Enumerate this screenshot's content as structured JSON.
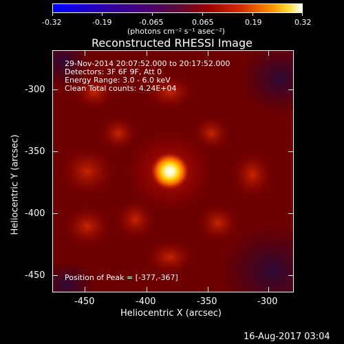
{
  "colorbar": {
    "ticks": [
      "-0.32",
      "-0.19",
      "-0.065",
      "0.065",
      "0.19",
      "0.32"
    ],
    "units": "(photons cm⁻² s⁻¹ asec⁻²)"
  },
  "title": "Reconstructed RHESSI Image",
  "annotations": {
    "time": "29-Nov-2014 20:07:52.000 to 20:17:52.000",
    "detectors": "Detectors: 3F 6F 9F, Att 0",
    "energy": "Energy Range: 3.0 - 6.0 keV",
    "clean": "Clean    Total counts: 4.24E+04",
    "peak": "Position of Peak = [-377,-367]"
  },
  "axes": {
    "xlabel": "Heliocentric X (arcsec)",
    "ylabel": "Heliocentric Y (arcsec)",
    "xticks": [
      "-450",
      "-400",
      "-350",
      "-300"
    ],
    "yticks": [
      "-300",
      "-350",
      "-400",
      "-450"
    ]
  },
  "footer": {
    "date": "16-Aug-2017 03:04"
  }
}
